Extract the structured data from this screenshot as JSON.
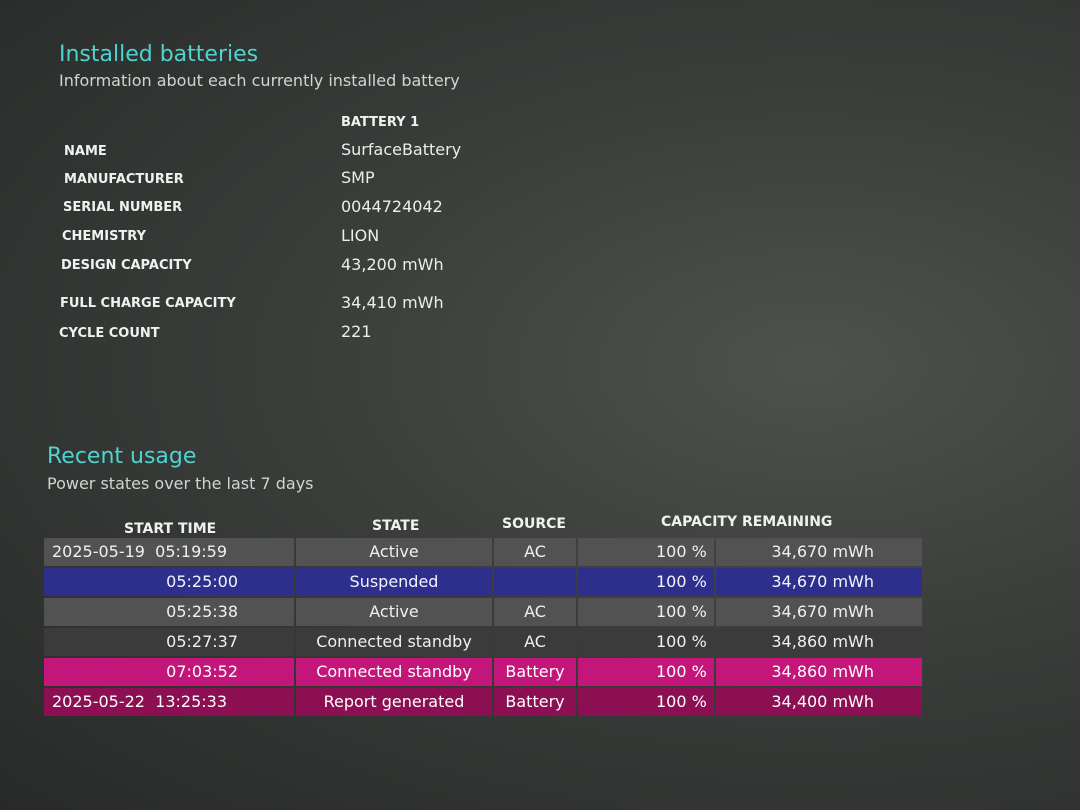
{
  "installed": {
    "title": "Installed batteries",
    "subtitle": "Information about each currently installed battery",
    "battery_header": "BATTERY 1",
    "fields": [
      {
        "label": "NAME",
        "value": "SurfaceBattery"
      },
      {
        "label": "MANUFACTURER",
        "value": "SMP"
      },
      {
        "label": "SERIAL NUMBER",
        "value": "0044724042"
      },
      {
        "label": "CHEMISTRY",
        "value": "LION"
      },
      {
        "label": "DESIGN CAPACITY",
        "value": "43,200 mWh"
      },
      {
        "label": "FULL CHARGE CAPACITY",
        "value": "34,410 mWh"
      },
      {
        "label": "CYCLE COUNT",
        "value": "221"
      }
    ]
  },
  "usage": {
    "title": "Recent usage",
    "subtitle": "Power states over the last 7 days",
    "headers": {
      "start_time": "START TIME",
      "state": "STATE",
      "source": "SOURCE",
      "capacity": "CAPACITY REMAINING"
    },
    "rows": [
      {
        "date": "2025-05-19",
        "time": "05:19:59",
        "state": "Active",
        "source": "AC",
        "percent": "100 %",
        "capacity": "34,670 mWh"
      },
      {
        "date": "",
        "time": "05:25:00",
        "state": "Suspended",
        "source": "",
        "percent": "100 %",
        "capacity": "34,670 mWh"
      },
      {
        "date": "",
        "time": "05:25:38",
        "state": "Active",
        "source": "AC",
        "percent": "100 %",
        "capacity": "34,670 mWh"
      },
      {
        "date": "",
        "time": "05:27:37",
        "state": "Connected standby",
        "source": "AC",
        "percent": "100 %",
        "capacity": "34,860 mWh"
      },
      {
        "date": "",
        "time": "07:03:52",
        "state": "Connected standby",
        "source": "Battery",
        "percent": "100 %",
        "capacity": "34,860 mWh"
      },
      {
        "date": "2025-05-22",
        "time": "13:25:33",
        "state": "Report generated",
        "source": "Battery",
        "percent": "100 %",
        "capacity": "34,400 mWh"
      }
    ]
  },
  "colors": {
    "title_cyan": "#4fd3d0",
    "active_row": "#525252",
    "suspended_row": "#2e2f8c",
    "standby_ac_row": "#3b3b3b",
    "standby_battery_row": "#c4167a",
    "report_row": "#8b0f52"
  }
}
